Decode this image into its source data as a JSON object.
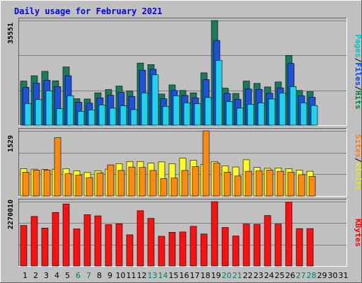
{
  "chart_data": {
    "type": "bar",
    "title": "Daily usage for February 2021",
    "days": [
      "1",
      "2",
      "3",
      "4",
      "5",
      "6",
      "7",
      "8",
      "9",
      "10",
      "11",
      "12",
      "13",
      "14",
      "15",
      "16",
      "17",
      "18",
      "19",
      "20",
      "21",
      "22",
      "23",
      "24",
      "25",
      "26",
      "27",
      "28",
      "29",
      "30",
      "31"
    ],
    "weekend_days": [
      6,
      7,
      13,
      14,
      20,
      21,
      27,
      28
    ],
    "panels": [
      {
        "ymax": 35551,
        "ymax_label": "35551",
        "legend": [
          {
            "text": "Pages",
            "color": "#00c8c8"
          },
          {
            "text": "/",
            "color": "#000000"
          },
          {
            "text": "Files",
            "color": "#0040ff"
          },
          {
            "text": "/",
            "color": "#000000"
          },
          {
            "text": "Hits",
            "color": "#008040"
          }
        ],
        "series": [
          {
            "name": "Hits",
            "color": "#1a7a5c",
            "values": [
              15000,
              16800,
              18300,
              15100,
              19800,
              9000,
              8900,
              11000,
              12100,
              13300,
              11600,
              21100,
              20600,
              10600,
              13700,
              11800,
              11000,
              17800,
              35551,
              12600,
              10800,
              15000,
              14200,
              13000,
              14700,
              23700,
              11800,
              11400,
              0,
              0,
              0
            ]
          },
          {
            "name": "Files",
            "color": "#1e50d8",
            "values": [
              12900,
              14300,
              15300,
              13100,
              16800,
              7800,
              7500,
              9300,
              10200,
              11200,
              9800,
              18700,
              19000,
              9000,
              11800,
              10100,
              9300,
              15500,
              28800,
              10800,
              8800,
              12300,
              12200,
              10900,
              12700,
              21000,
              10000,
              9500,
              0,
              0,
              0
            ]
          },
          {
            "name": "Pages",
            "color": "#1ed2f0",
            "values": [
              7400,
              8700,
              11700,
              5600,
              10000,
              4700,
              5200,
              6900,
              5800,
              6600,
              5300,
              11000,
              17100,
              6400,
              10000,
              7600,
              7300,
              9400,
              22000,
              8000,
              5800,
              7100,
              7600,
              8900,
              10900,
              13100,
              7600,
              6700,
              0,
              0,
              0
            ]
          }
        ]
      },
      {
        "ymax": 1529,
        "ymax_label": "1529",
        "legend": [
          {
            "text": "Sites",
            "color": "#ff8000"
          },
          {
            "text": "/",
            "color": "#000000"
          },
          {
            "text": "Visits",
            "color": "#e8e800"
          }
        ],
        "series": [
          {
            "name": "Visits",
            "color": "#ffff20",
            "values": [
              640,
              630,
              620,
              630,
              640,
              590,
              550,
              590,
              630,
              760,
              810,
              810,
              770,
              800,
              760,
              890,
              840,
              740,
              810,
              710,
              680,
              850,
              670,
              650,
              660,
              640,
              610,
              580,
              0,
              0,
              0
            ]
          },
          {
            "name": "Sites",
            "color": "#ff8a10",
            "values": [
              560,
              610,
              610,
              1370,
              520,
              490,
              430,
              540,
              730,
              600,
              680,
              670,
              600,
              410,
              420,
              600,
              690,
              1529,
              770,
              560,
              470,
              580,
              590,
              610,
              580,
              560,
              500,
              460,
              0,
              0,
              0
            ]
          }
        ]
      },
      {
        "ymax": 2270010,
        "ymax_label": "2270010",
        "legend": [
          {
            "text": "KBytes",
            "color": "#ff0000"
          }
        ],
        "series": [
          {
            "name": "KBytes",
            "color": "#ff1010",
            "values": [
              1430000,
              1750000,
              1340000,
              1890000,
              2190000,
              1310000,
              1810000,
              1770000,
              1460000,
              1490000,
              1100000,
              1950000,
              1680000,
              1050000,
              1190000,
              1200000,
              1400000,
              1130000,
              2270010,
              1360000,
              1060000,
              1480000,
              1470000,
              1780000,
              1480000,
              2250000,
              1320000,
              1320000,
              0,
              0,
              0
            ]
          }
        ]
      }
    ],
    "colors": {
      "background": "#c0c0c0",
      "plot": "#c0c0c0",
      "gridline": "#808080",
      "title": "#0000ff",
      "weekday_label": "#000000",
      "weekend_label": "#00806a"
    }
  }
}
